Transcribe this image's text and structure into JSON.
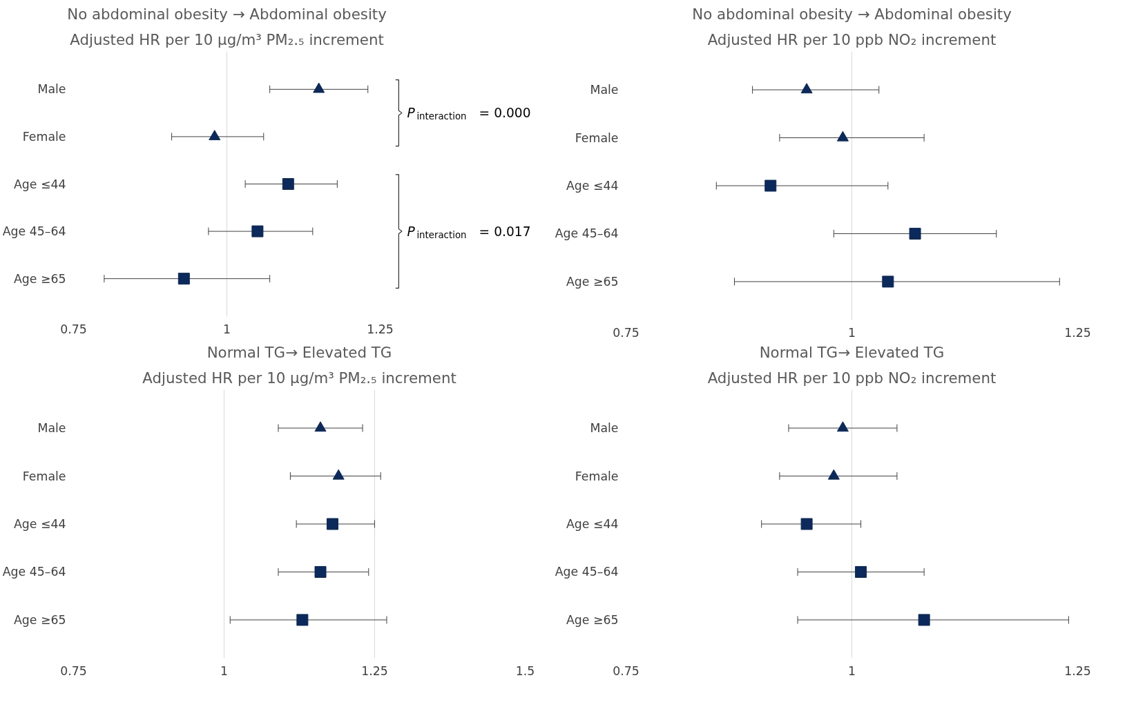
{
  "chart_data": [
    {
      "type": "scatter",
      "orientation": "horizontal",
      "title": "No abdominal obesity → Abdominal obesity",
      "subtitle": "Adjusted HR per 10 μg/m³ PM₂.₅ increment",
      "categories": [
        "Male",
        "Female",
        "Age ≤44",
        "Age 45–64",
        "Age ≥65"
      ],
      "series": [
        {
          "color": "#0b2a5b",
          "marker": "triangle",
          "values": [
            1.15,
            0.98,
            null,
            null,
            null
          ],
          "errors": [
            [
              1.07,
              1.23
            ],
            [
              0.91,
              1.06
            ],
            null,
            null,
            null
          ]
        },
        {
          "color": "#0b2a5b",
          "marker": "square",
          "values": [
            null,
            null,
            1.1,
            1.05,
            0.93
          ],
          "errors": [
            null,
            null,
            [
              1.03,
              1.18
            ],
            [
              0.97,
              1.14
            ],
            [
              0.8,
              1.07
            ]
          ]
        }
      ],
      "xlim": [
        0.75,
        1.25
      ],
      "xticks": [
        0.75,
        1,
        1.25
      ],
      "grid": "x",
      "annotations": [
        "P$_{interaction}$= 0.000",
        "P$_{interaction}$= 0.017"
      ]
    },
    {
      "type": "scatter",
      "orientation": "horizontal",
      "title": "No abdominal obesity → Abdominal obesity",
      "subtitle": "Adjusted HR per 10 ppb NO₂ increment",
      "categories": [
        "Male",
        "Female",
        "Age ≤44",
        "Age 45–64",
        "Age ≥65"
      ],
      "series": [
        {
          "color": "#0b2a5b",
          "marker": "triangle",
          "values": [
            0.95,
            0.99,
            null,
            null,
            null
          ],
          "errors": [
            [
              0.89,
              1.03
            ],
            [
              0.92,
              1.08
            ],
            null,
            null,
            null
          ]
        },
        {
          "color": "#0b2a5b",
          "marker": "square",
          "values": [
            null,
            null,
            0.91,
            1.07,
            1.04
          ],
          "errors": [
            null,
            null,
            [
              0.85,
              1.04
            ],
            [
              0.98,
              1.16
            ],
            [
              0.87,
              1.23
            ]
          ]
        }
      ],
      "xlim": [
        0.75,
        1.25
      ],
      "xticks": [
        0.75,
        1,
        1.25
      ],
      "grid": "x"
    },
    {
      "type": "scatter",
      "orientation": "horizontal",
      "title": "Normal TG→ Elevated TG",
      "subtitle": "Adjusted HR per 10 μg/m³ PM₂.₅ increment",
      "categories": [
        "Male",
        "Female",
        "Age ≤44",
        "Age 45–64",
        "Age ≥65"
      ],
      "series": [
        {
          "color": "#0b2a5b",
          "marker": "triangle",
          "values": [
            1.16,
            1.19,
            null,
            null,
            null
          ],
          "errors": [
            [
              1.09,
              1.23
            ],
            [
              1.11,
              1.26
            ],
            null,
            null,
            null
          ]
        },
        {
          "color": "#0b2a5b",
          "marker": "square",
          "values": [
            null,
            null,
            1.18,
            1.16,
            1.13
          ],
          "errors": [
            null,
            null,
            [
              1.12,
              1.25
            ],
            [
              1.09,
              1.24
            ],
            [
              1.01,
              1.27
            ]
          ]
        }
      ],
      "xlim": [
        0.75,
        1.5
      ],
      "xticks": [
        0.75,
        1,
        1.25,
        1.5
      ],
      "grid": "x"
    },
    {
      "type": "scatter",
      "orientation": "horizontal",
      "title": "Normal TG→ Elevated TG",
      "subtitle": "Adjusted HR per 10 ppb NO₂ increment",
      "categories": [
        "Male",
        "Female",
        "Age ≤44",
        "Age 45–64",
        "Age ≥65"
      ],
      "series": [
        {
          "color": "#0b2a5b",
          "marker": "triangle",
          "values": [
            0.99,
            0.98,
            null,
            null,
            null
          ],
          "errors": [
            [
              0.93,
              1.05
            ],
            [
              0.92,
              1.05
            ],
            null,
            null,
            null
          ]
        },
        {
          "color": "#0b2a5b",
          "marker": "square",
          "values": [
            null,
            null,
            0.95,
            1.01,
            1.08
          ],
          "errors": [
            null,
            null,
            [
              0.9,
              1.01
            ],
            [
              0.94,
              1.08
            ],
            [
              0.94,
              1.24
            ]
          ]
        }
      ],
      "xlim": [
        0.75,
        1.25
      ],
      "xticks": [
        0.75,
        1,
        1.25
      ],
      "grid": "x"
    }
  ]
}
